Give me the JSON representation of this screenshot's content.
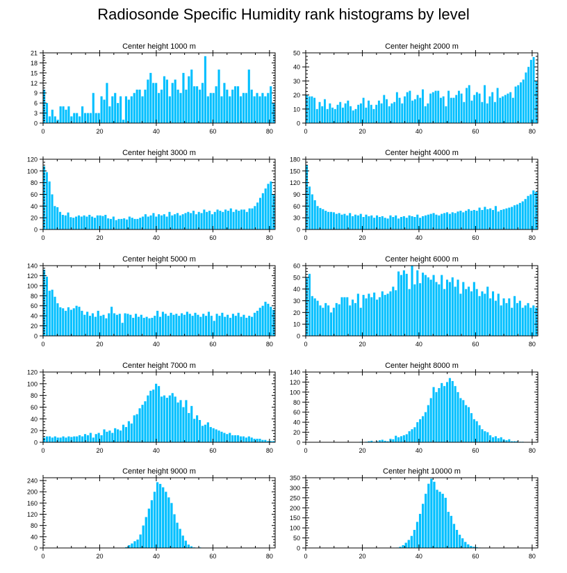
{
  "title": "Radiosonde Specific Humidity rank histograms by level",
  "bar_color": "#00bfff",
  "chart_data": [
    {
      "type": "bar",
      "title": "Center height 1000 m",
      "ylim": [
        0,
        21
      ],
      "yticks": [
        0,
        3,
        6,
        9,
        12,
        15,
        18,
        21
      ],
      "xticks": [
        0,
        20,
        40,
        60,
        80
      ],
      "xlim": [
        0,
        82
      ],
      "values": [
        10,
        6,
        2,
        4,
        2,
        1,
        5,
        5,
        4,
        5,
        2,
        3,
        3,
        2,
        5,
        3,
        3,
        3,
        9,
        3,
        3,
        8,
        7,
        12,
        5,
        8,
        9,
        6,
        8,
        1,
        8,
        7,
        8,
        9,
        10,
        10,
        8,
        10,
        13,
        15,
        12,
        12,
        9,
        10,
        14,
        13,
        8,
        12,
        13,
        10,
        9,
        15,
        10,
        14,
        16,
        11,
        11,
        10,
        12,
        20,
        8,
        9,
        9,
        11,
        16,
        8,
        12,
        10,
        8,
        10,
        11,
        11,
        8,
        9,
        9,
        16,
        10,
        8,
        9,
        8,
        9,
        8,
        9,
        11,
        6
      ]
    },
    {
      "type": "bar",
      "title": "Center height 2000 m",
      "ylim": [
        0,
        50
      ],
      "yticks": [
        0,
        10,
        20,
        30,
        40,
        50
      ],
      "xticks": [
        0,
        20,
        40,
        60,
        80
      ],
      "xlim": [
        0,
        82
      ],
      "values": [
        20,
        19,
        19,
        18,
        10,
        15,
        12,
        17,
        10,
        14,
        11,
        10,
        13,
        15,
        11,
        14,
        16,
        12,
        9,
        10,
        13,
        14,
        18,
        11,
        16,
        13,
        10,
        13,
        16,
        14,
        20,
        17,
        12,
        14,
        15,
        22,
        18,
        14,
        19,
        22,
        23,
        16,
        17,
        20,
        18,
        24,
        12,
        14,
        21,
        22,
        23,
        23,
        18,
        19,
        12,
        23,
        18,
        18,
        20,
        23,
        21,
        15,
        25,
        27,
        16,
        20,
        22,
        21,
        15,
        27,
        14,
        19,
        22,
        15,
        25,
        18,
        19,
        20,
        21,
        22,
        18,
        26,
        27,
        29,
        31,
        36,
        40,
        45,
        47,
        30
      ]
    },
    {
      "type": "bar",
      "title": "Center height 3000 m",
      "ylim": [
        0,
        120
      ],
      "yticks": [
        0,
        20,
        40,
        60,
        80,
        100,
        120
      ],
      "xticks": [
        0,
        20,
        40,
        60,
        80
      ],
      "xlim": [
        0,
        82
      ],
      "values": [
        108,
        98,
        82,
        60,
        40,
        38,
        30,
        25,
        24,
        29,
        21,
        20,
        22,
        24,
        22,
        24,
        22,
        25,
        22,
        20,
        24,
        24,
        23,
        25,
        19,
        18,
        22,
        16,
        18,
        18,
        19,
        17,
        22,
        20,
        18,
        18,
        20,
        22,
        26,
        22,
        24,
        28,
        22,
        26,
        24,
        26,
        22,
        30,
        24,
        26,
        28,
        24,
        26,
        28,
        30,
        28,
        32,
        26,
        30,
        28,
        34,
        30,
        32,
        26,
        30,
        34,
        32,
        30,
        34,
        32,
        36,
        30,
        34,
        32,
        34,
        34,
        30,
        36,
        36,
        40,
        46,
        54,
        62,
        70,
        78,
        82,
        60
      ]
    },
    {
      "type": "bar",
      "title": "Center height 4000 m",
      "ylim": [
        0,
        180
      ],
      "yticks": [
        0,
        30,
        60,
        90,
        120,
        150,
        180
      ],
      "xticks": [
        0,
        20,
        40,
        60,
        80
      ],
      "xlim": [
        0,
        82
      ],
      "values": [
        165,
        110,
        90,
        75,
        60,
        55,
        52,
        48,
        45,
        45,
        44,
        40,
        42,
        38,
        40,
        36,
        42,
        34,
        38,
        36,
        40,
        32,
        38,
        34,
        36,
        30,
        36,
        32,
        34,
        30,
        28,
        36,
        32,
        36,
        28,
        32,
        34,
        30,
        36,
        34,
        32,
        38,
        30,
        34,
        36,
        38,
        40,
        42,
        38,
        36,
        40,
        42,
        44,
        40,
        44,
        42,
        46,
        48,
        44,
        48,
        52,
        48,
        50,
        48,
        56,
        50,
        58,
        52,
        54,
        50,
        60,
        46,
        50,
        52,
        54,
        56,
        58,
        62,
        64,
        68,
        72,
        78,
        86,
        90,
        100,
        96
      ]
    },
    {
      "type": "bar",
      "title": "Center height 5000 m",
      "ylim": [
        0,
        140
      ],
      "yticks": [
        0,
        20,
        40,
        60,
        80,
        100,
        120,
        140
      ],
      "xticks": [
        0,
        20,
        40,
        60,
        80
      ],
      "xlim": [
        0,
        82
      ],
      "values": [
        132,
        118,
        90,
        92,
        78,
        65,
        57,
        55,
        50,
        57,
        52,
        55,
        60,
        58,
        50,
        42,
        48,
        40,
        45,
        38,
        50,
        40,
        42,
        35,
        45,
        58,
        45,
        42,
        44,
        26,
        45,
        44,
        42,
        36,
        44,
        38,
        42,
        36,
        38,
        35,
        36,
        40,
        50,
        38,
        48,
        44,
        40,
        46,
        42,
        44,
        40,
        45,
        42,
        48,
        44,
        40,
        46,
        42,
        38,
        44,
        40,
        48,
        40,
        30,
        44,
        40,
        46,
        38,
        42,
        36,
        44,
        40,
        46,
        38,
        42,
        36,
        40,
        38,
        46,
        50,
        56,
        60,
        68,
        64,
        58,
        52
      ]
    },
    {
      "type": "bar",
      "title": "Center height 6000 m",
      "ylim": [
        0,
        60
      ],
      "yticks": [
        0,
        10,
        20,
        30,
        40,
        50,
        60
      ],
      "xticks": [
        0,
        20,
        40,
        60,
        80
      ],
      "xlim": [
        0,
        82
      ],
      "values": [
        50,
        53,
        34,
        32,
        30,
        26,
        24,
        28,
        26,
        20,
        24,
        28,
        27,
        33,
        33,
        33,
        26,
        31,
        28,
        36,
        24,
        35,
        32,
        36,
        33,
        37,
        31,
        33,
        38,
        35,
        36,
        38,
        42,
        39,
        55,
        52,
        56,
        53,
        40,
        60,
        44,
        56,
        45,
        54,
        52,
        50,
        48,
        52,
        46,
        44,
        52,
        40,
        48,
        46,
        50,
        42,
        48,
        36,
        46,
        40,
        42,
        38,
        46,
        40,
        34,
        38,
        36,
        42,
        32,
        38,
        30,
        36,
        26,
        32,
        28,
        32,
        24,
        34,
        28,
        30,
        24,
        26,
        28,
        24,
        26,
        24
      ]
    },
    {
      "type": "bar",
      "title": "Center height 7000 m",
      "ylim": [
        0,
        120
      ],
      "yticks": [
        0,
        20,
        40,
        60,
        80,
        100,
        120
      ],
      "xticks": [
        0,
        20,
        40,
        60,
        80
      ],
      "xlim": [
        0,
        82
      ],
      "values": [
        8,
        10,
        10,
        8,
        10,
        8,
        8,
        10,
        8,
        10,
        9,
        10,
        10,
        12,
        10,
        14,
        12,
        16,
        8,
        14,
        16,
        12,
        22,
        18,
        20,
        16,
        24,
        22,
        20,
        30,
        26,
        36,
        32,
        46,
        48,
        58,
        64,
        70,
        80,
        88,
        90,
        100,
        96,
        78,
        80,
        76,
        80,
        84,
        78,
        68,
        72,
        60,
        72,
        50,
        62,
        40,
        46,
        38,
        28,
        30,
        34,
        26,
        24,
        22,
        20,
        18,
        16,
        14,
        16,
        12,
        12,
        12,
        10,
        10,
        8,
        10,
        8,
        6,
        6,
        6,
        4,
        4,
        2,
        2,
        2
      ]
    },
    {
      "type": "bar",
      "title": "Center height 8000 m",
      "ylim": [
        0,
        140
      ],
      "yticks": [
        0,
        20,
        40,
        60,
        80,
        100,
        120,
        140
      ],
      "xticks": [
        0,
        20,
        40,
        60,
        80
      ],
      "xlim": [
        0,
        82
      ],
      "values": [
        0,
        0,
        0,
        0,
        0,
        0,
        0,
        0,
        0,
        0,
        0,
        0,
        0,
        0,
        0,
        0,
        0,
        0,
        0,
        0,
        1,
        0,
        1,
        2,
        3,
        1,
        2,
        4,
        5,
        3,
        2,
        7,
        6,
        13,
        10,
        12,
        14,
        16,
        22,
        26,
        30,
        40,
        46,
        52,
        60,
        74,
        88,
        110,
        100,
        108,
        118,
        112,
        120,
        128,
        122,
        112,
        100,
        88,
        84,
        74,
        70,
        58,
        46,
        42,
        34,
        26,
        22,
        20,
        14,
        10,
        12,
        8,
        10,
        6,
        4,
        6,
        2,
        2,
        2,
        1,
        1,
        0,
        0,
        0,
        0,
        0
      ]
    },
    {
      "type": "bar",
      "title": "Center height 9000 m",
      "ylim": [
        0,
        250
      ],
      "yticks": [
        0,
        40,
        80,
        120,
        160,
        200,
        240
      ],
      "xticks": [
        0,
        20,
        40,
        60,
        80
      ],
      "xlim": [
        0,
        82
      ],
      "values": [
        0,
        0,
        0,
        0,
        0,
        0,
        0,
        0,
        0,
        0,
        0,
        0,
        0,
        0,
        0,
        0,
        0,
        0,
        0,
        0,
        0,
        0,
        0,
        0,
        0,
        0,
        0,
        0,
        1,
        3,
        10,
        16,
        24,
        30,
        48,
        80,
        110,
        140,
        170,
        200,
        234,
        228,
        216,
        200,
        180,
        160,
        120,
        90,
        68,
        44,
        26,
        12,
        6,
        2,
        1,
        2,
        1,
        0,
        0,
        0,
        0,
        0,
        0,
        0,
        0,
        0,
        0,
        0,
        0,
        0,
        0,
        0,
        0,
        0,
        0,
        0,
        0,
        0,
        0,
        0,
        0,
        0
      ]
    },
    {
      "type": "bar",
      "title": "Center height 10000 m",
      "ylim": [
        0,
        350
      ],
      "yticks": [
        0,
        50,
        100,
        150,
        200,
        250,
        300,
        350
      ],
      "xticks": [
        0,
        20,
        40,
        60,
        80
      ],
      "xlim": [
        0,
        82
      ],
      "values": [
        0,
        0,
        0,
        0,
        0,
        0,
        0,
        0,
        0,
        0,
        0,
        0,
        0,
        0,
        0,
        0,
        0,
        0,
        0,
        0,
        0,
        0,
        0,
        0,
        0,
        0,
        0,
        0,
        0,
        0,
        0,
        0,
        2,
        6,
        14,
        26,
        40,
        60,
        90,
        130,
        170,
        220,
        270,
        320,
        345,
        330,
        290,
        280,
        270,
        250,
        180,
        160,
        120,
        90,
        66,
        48,
        30,
        18,
        10,
        6,
        4,
        2,
        1,
        0,
        0,
        0,
        0,
        0,
        0,
        0,
        0,
        0,
        0,
        0,
        0,
        0,
        0,
        0,
        0,
        0,
        0,
        0
      ]
    }
  ]
}
